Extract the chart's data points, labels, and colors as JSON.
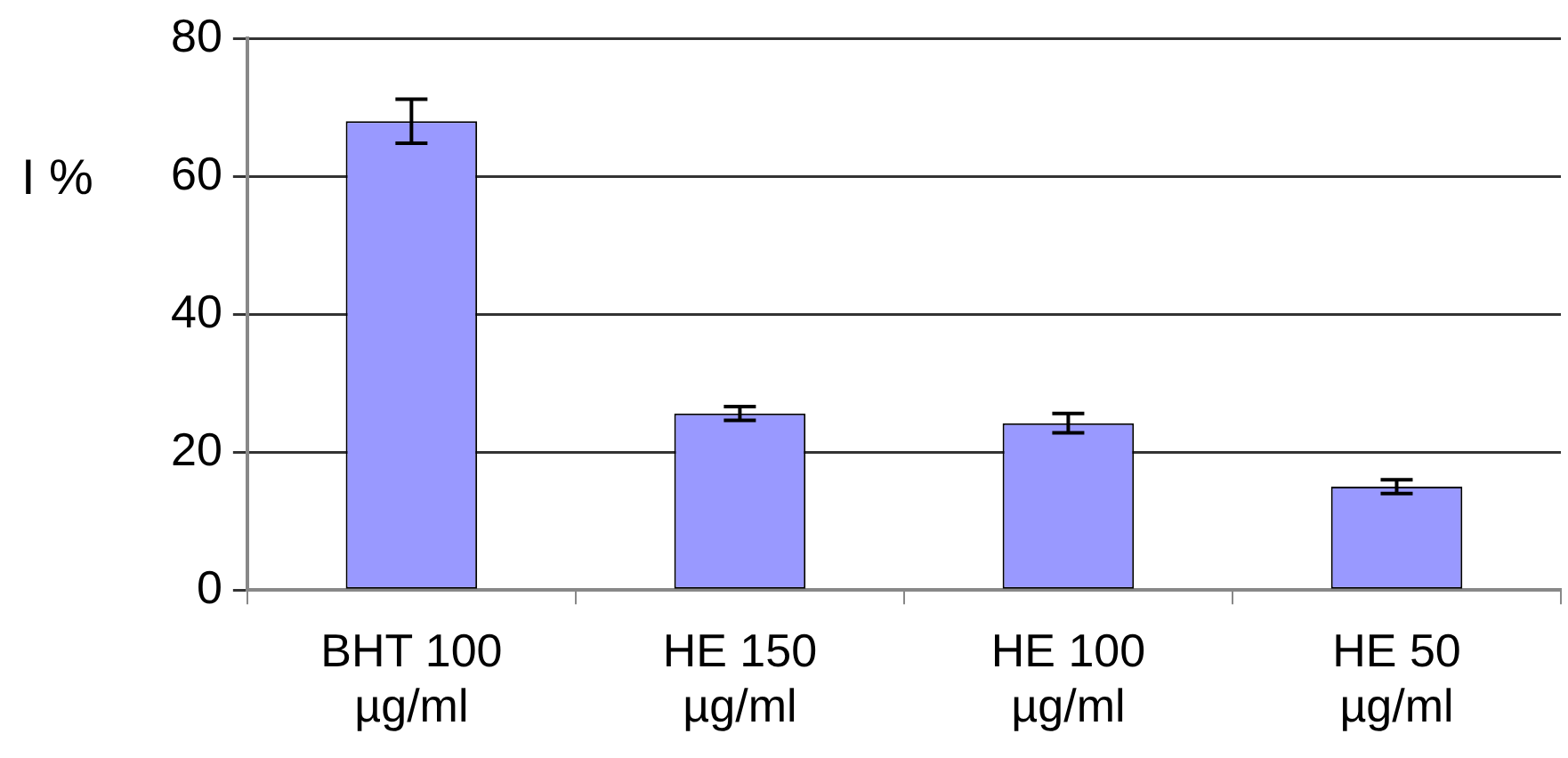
{
  "chart_data": {
    "type": "bar",
    "ylabel": "I %",
    "categories": [
      "BHT 100 µg/ml",
      "HE 150 µg/ml",
      "HE 100 µg/ml",
      "HE 50 µg/ml"
    ],
    "values": [
      68,
      25.6,
      24.2,
      15
    ],
    "errors": [
      3.2,
      1,
      1.4,
      1
    ],
    "color": "#9999ff",
    "ylim": [
      0,
      80
    ],
    "yticks": [
      0,
      20,
      40,
      60,
      80
    ],
    "grid": "y",
    "legend": false
  }
}
